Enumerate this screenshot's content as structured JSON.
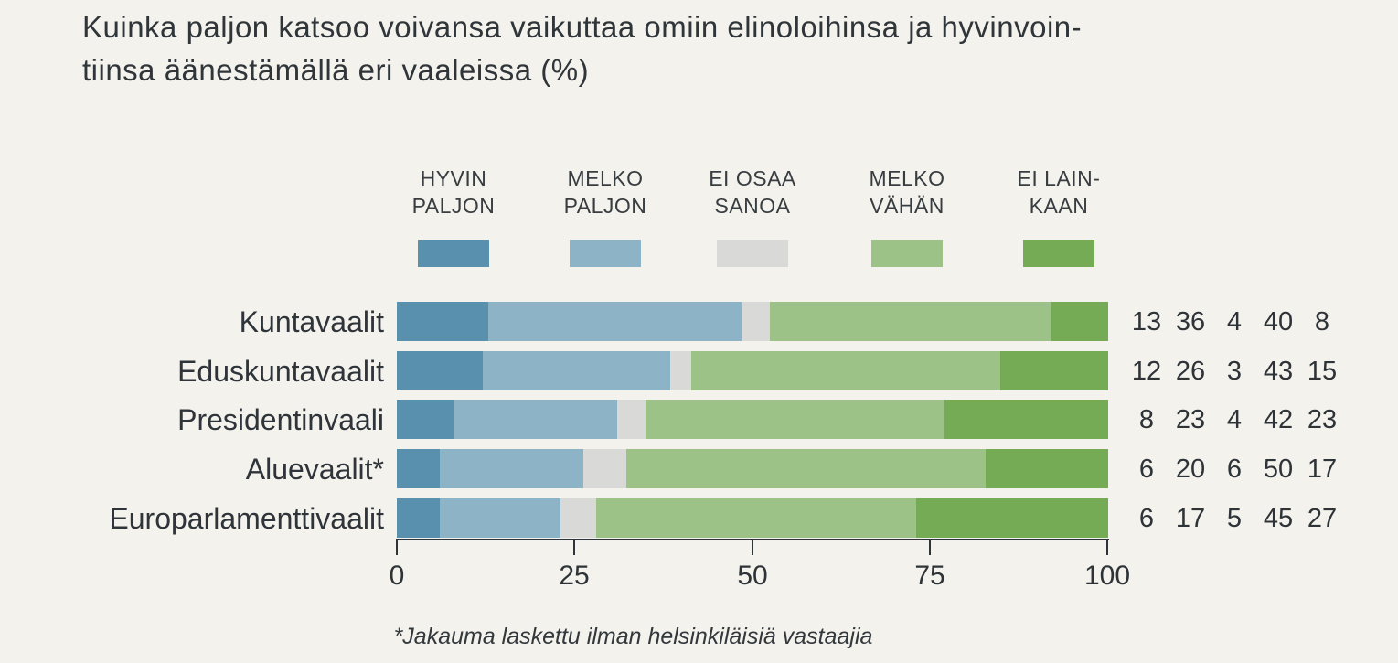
{
  "title": "Kuinka paljon katsoo voivansa vaikuttaa omiin elinoloihinsa ja hyvinvoin-\ntiinsa äänestämällä eri vaaleissa (%)",
  "footnote": "*Jakauma laskettu ilman helsinkiläisiä vastaajia",
  "colors": {
    "background": "#f3f2ec",
    "text": "#2f343a",
    "axis": "#2f343a"
  },
  "chart_data": {
    "type": "bar",
    "orientation": "horizontal",
    "stacked": true,
    "title": "Kuinka paljon katsoo voivansa vaikuttaa omiin elinoloihinsa ja hyvinvointiinsa äänestämällä eri vaaleissa (%)",
    "categories": [
      "Kuntavaalit",
      "Eduskuntavaalit",
      "Presidentinvaali",
      "Aluevaalit*",
      "Europarlamenttivaalit"
    ],
    "series": [
      {
        "name": "HYVIN PALJON",
        "legend_label": "HYVIN\nPALJON",
        "color": "#5890ae",
        "values": [
          13,
          12,
          8,
          6,
          6
        ]
      },
      {
        "name": "MELKO PALJON",
        "legend_label": "MELKO\nPALJON",
        "color": "#8db3c6",
        "values": [
          36,
          26,
          23,
          20,
          17
        ]
      },
      {
        "name": "EI OSAA SANOA",
        "legend_label": "EI OSAA\nSANOA",
        "color": "#d9d9d8",
        "values": [
          4,
          3,
          4,
          6,
          5
        ]
      },
      {
        "name": "MELKO VÄHÄN",
        "legend_label": "MELKO\nVÄHÄN",
        "color": "#9dc287",
        "values": [
          40,
          43,
          42,
          50,
          45
        ]
      },
      {
        "name": "EI LAINKAAN",
        "legend_label": "EI LAIN-\nKAAN",
        "color": "#76ab55",
        "values": [
          8,
          15,
          23,
          17,
          27
        ]
      }
    ],
    "row_value_labels": [
      [
        13,
        36,
        4,
        40,
        8
      ],
      [
        12,
        26,
        3,
        43,
        15
      ],
      [
        8,
        23,
        4,
        42,
        23
      ],
      [
        6,
        20,
        6,
        50,
        17
      ],
      [
        6,
        17,
        5,
        45,
        27
      ]
    ],
    "xlabel": "",
    "ylabel": "",
    "xlim": [
      0,
      100
    ],
    "x_ticks": [
      0,
      25,
      50,
      75,
      100
    ],
    "grid": false,
    "legend_position": "top",
    "footnote": "*Jakauma laskettu ilman helsinkiläisiä vastaajia"
  }
}
